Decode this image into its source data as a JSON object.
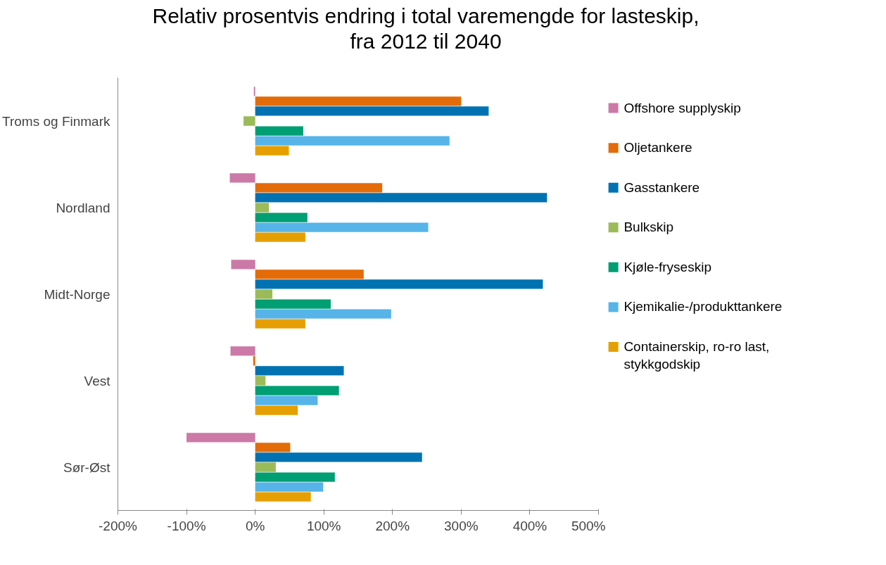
{
  "chart_data": {
    "type": "bar",
    "orientation": "horizontal",
    "title": "Relativ prosentvis endring i total varemengde for lasteskip, fra 2012 til 2040",
    "categories": [
      "Troms og Finmark",
      "Nordland",
      "Midt-Norge",
      "Vest",
      "Sør-Øst"
    ],
    "series": [
      {
        "name": "Offshore supplyskip",
        "color": "#cc79a7",
        "values": [
          -2,
          -37,
          -35,
          -36,
          -100
        ]
      },
      {
        "name": "Oljetankere",
        "color": "#e36c09",
        "values": [
          300,
          185,
          158,
          -3,
          51
        ]
      },
      {
        "name": "Gasstankere",
        "color": "#0072b2",
        "values": [
          340,
          425,
          419,
          129,
          243
        ]
      },
      {
        "name": "Bulkskip",
        "color": "#9bbb59",
        "values": [
          -17,
          20,
          25,
          15,
          30
        ]
      },
      {
        "name": "Kjøle-fryseskip",
        "color": "#009e73",
        "values": [
          70,
          76,
          110,
          122,
          116
        ]
      },
      {
        "name": "Kjemikalie-/produkttankere",
        "color": "#56b4e9",
        "values": [
          283,
          252,
          198,
          91,
          99
        ]
      },
      {
        "name": "Containerskip, ro-ro last, stykkgodskip",
        "color": "#e69f00",
        "values": [
          49,
          73,
          73,
          62,
          81
        ]
      }
    ],
    "xlim": [
      -200,
      500
    ],
    "xticks": [
      {
        "value": -200,
        "label": "-200%"
      },
      {
        "value": -100,
        "label": "-100%"
      },
      {
        "value": 0,
        "label": "0%"
      },
      {
        "value": 100,
        "label": "100%"
      },
      {
        "value": 200,
        "label": "200%"
      },
      {
        "value": 300,
        "label": "300%"
      },
      {
        "value": 400,
        "label": "400%"
      },
      {
        "value": 500,
        "label": "500%"
      }
    ],
    "grid": false,
    "legend": "right"
  }
}
